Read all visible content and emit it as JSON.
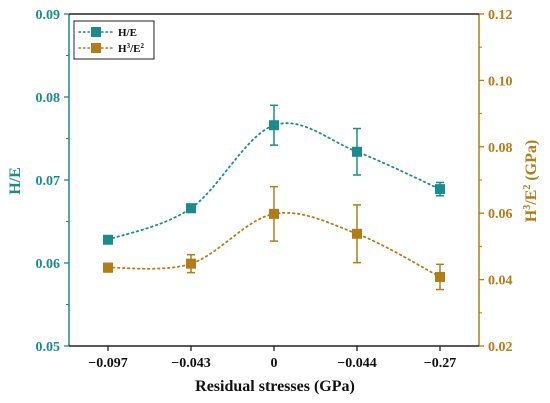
{
  "chart_data": {
    "type": "line",
    "xlabel": "Residual stresses (GPa)",
    "categories": [
      "−0.097",
      "−0.043",
      "0",
      "−0.044",
      "−0.27"
    ],
    "colors": {
      "left": "#1b8c8c",
      "right": "#b07d18",
      "axis": "#222222"
    },
    "legend_position": "top-left",
    "grid": false,
    "left_axis": {
      "label": "H/E",
      "ylim": [
        0.05,
        0.09
      ],
      "ticks": [
        "0.05",
        "0.06",
        "0.07",
        "0.08",
        "0.09"
      ],
      "tick_values": [
        0.05,
        0.06,
        0.07,
        0.08,
        0.09
      ]
    },
    "right_axis": {
      "label_main": "H",
      "label_sup1": "3",
      "label_mid": "/E",
      "label_sup2": "2",
      "label_tail": " (GPa)",
      "ylim": [
        0.02,
        0.12
      ],
      "ticks": [
        "0.02",
        "0.04",
        "0.06",
        "0.08",
        "0.10",
        "0.12"
      ],
      "tick_values": [
        0.02,
        0.04,
        0.06,
        0.08,
        0.1,
        0.12
      ]
    },
    "series": [
      {
        "name": "H/E",
        "axis": "left",
        "marker": "square",
        "values": [
          0.0628,
          0.0666,
          0.0766,
          0.0734,
          0.0689
        ],
        "errors": [
          0.0003,
          0.0005,
          0.0024,
          0.0028,
          0.0008
        ]
      },
      {
        "name_main": "H",
        "name_sup1": "3",
        "name_mid": "/E",
        "name_sup2": "2",
        "axis": "right",
        "marker": "square",
        "values": [
          0.0436,
          0.0448,
          0.0598,
          0.0538,
          0.0408
        ],
        "errors": [
          0.0013,
          0.0027,
          0.0082,
          0.0087,
          0.0038
        ]
      }
    ]
  }
}
